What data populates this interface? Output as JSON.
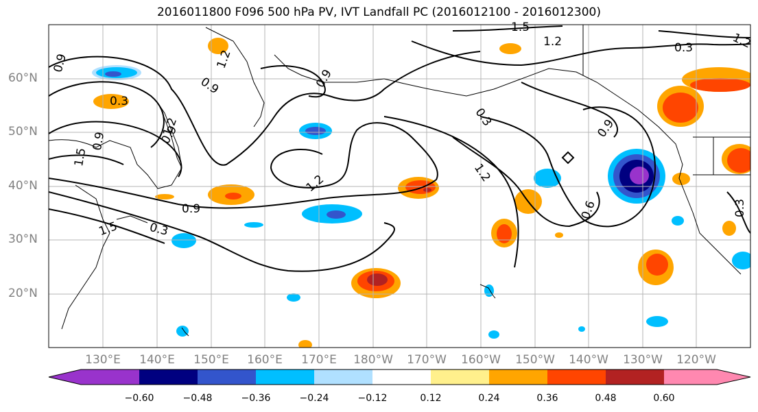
{
  "title": "2016011800 F096 500 hPa PV, IVT Landfall PC (2016012100 - 2016012300)",
  "lat_labels": [
    "60°N",
    "50°N",
    "40°N",
    "30°N",
    "20°N"
  ],
  "lon_labels": [
    "130°E",
    "140°E",
    "150°E",
    "160°E",
    "170°E",
    "180°W",
    "170°W",
    "160°W",
    "150°W",
    "140°W",
    "130°W",
    "120°W"
  ],
  "colorbar": {
    "colors": [
      "#9933cc",
      "#000080",
      "#3355cc",
      "#00bfff",
      "#b0e0ff",
      "#ffffff",
      "#fff08c",
      "#ffa500",
      "#ff4500",
      "#b22222",
      "#ff88b0"
    ],
    "tick_labels": [
      "−0.60",
      "−0.48",
      "−0.36",
      "−0.24",
      "−0.12",
      "0.12",
      "0.24",
      "0.36",
      "0.48",
      "0.60"
    ]
  },
  "contour_labels": [
    "0.9",
    "1.5",
    "0.9",
    "0.3",
    "1.2",
    "1.5",
    "0.9",
    "0.9",
    "0.3",
    "1.2",
    "1.2",
    "0.9",
    "0.3",
    "1.2",
    "0.9",
    "0.6",
    "1.2",
    "0.3",
    "0.3",
    "1.5",
    "1.2",
    "0.9"
  ]
}
